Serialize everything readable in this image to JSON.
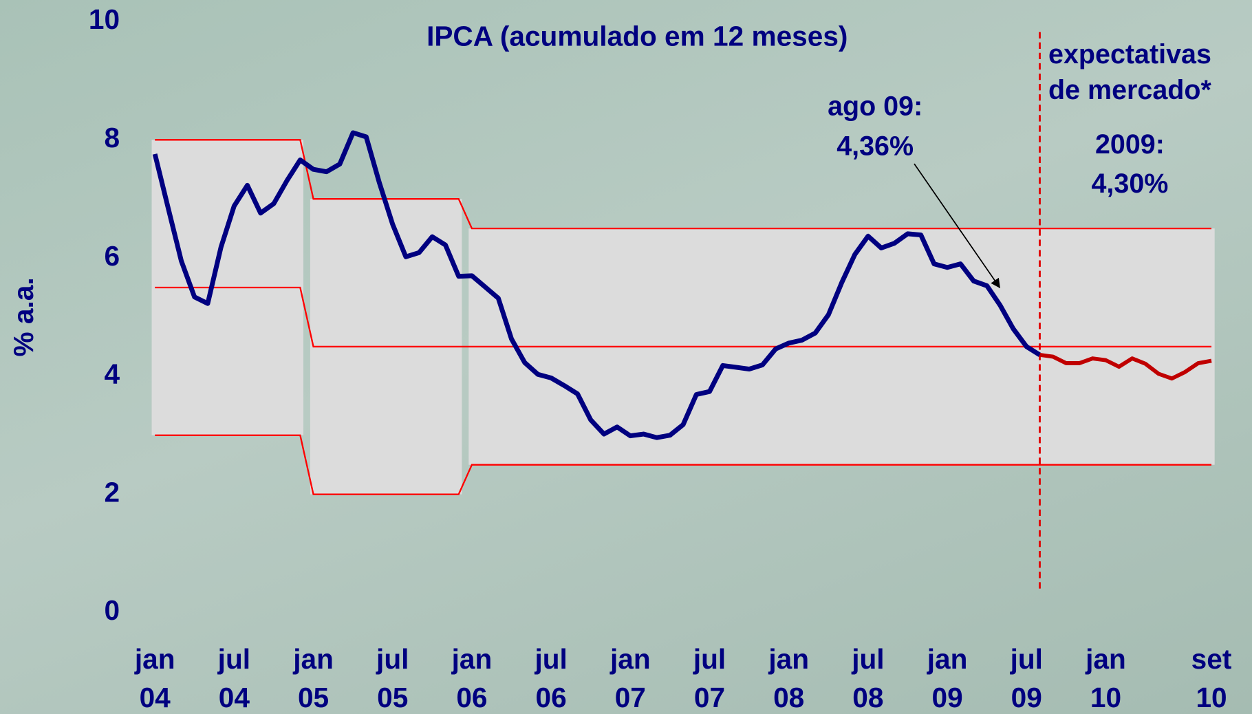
{
  "chart_data": {
    "type": "line",
    "title": "IPCA (acumulado em 12 meses)",
    "y_label": "% a.a.",
    "annotations": {
      "point": [
        "ago 09:",
        "4,36%"
      ],
      "forecast": [
        "expectativas",
        "de mercado*"
      ],
      "forecast_value": [
        "2009:",
        "4,30%"
      ]
    },
    "categories": [
      "jan 04",
      null,
      null,
      null,
      null,
      null,
      "jul 04",
      null,
      null,
      null,
      null,
      null,
      "jan 05",
      null,
      null,
      null,
      null,
      null,
      "jul 05",
      null,
      null,
      null,
      null,
      null,
      "jan 06",
      null,
      null,
      null,
      null,
      null,
      "jul 06",
      null,
      null,
      null,
      null,
      null,
      "jan 07",
      null,
      null,
      null,
      null,
      null,
      "jul 07",
      null,
      null,
      null,
      null,
      null,
      "jan 08",
      null,
      null,
      null,
      null,
      null,
      "jul 08",
      null,
      null,
      null,
      null,
      null,
      "jan 09",
      null,
      null,
      null,
      null,
      null,
      "jul 09",
      null,
      null,
      null,
      null,
      null,
      "jan 10",
      null,
      null,
      null,
      null,
      null,
      null,
      null,
      "set 10"
    ],
    "series": [
      {
        "color": "#000080",
        "values": [
          7.76,
          6.85,
          5.95,
          5.34,
          5.23,
          6.18,
          6.88,
          7.23,
          6.76,
          6.92,
          7.31,
          7.66,
          7.5,
          7.46,
          7.59,
          8.12,
          8.05,
          7.27,
          6.57,
          6.02,
          6.09,
          6.36,
          6.22,
          5.69,
          5.7,
          5.51,
          5.32,
          4.63,
          4.23,
          4.03,
          3.97,
          3.84,
          3.7,
          3.26,
          3.02,
          3.14,
          2.99,
          3.02,
          2.96,
          3.0,
          3.18,
          3.69,
          3.74,
          4.18,
          4.15,
          4.12,
          4.19,
          4.46,
          4.56,
          4.61,
          4.73,
          5.04,
          5.58,
          6.06,
          6.37,
          6.17,
          6.25,
          6.41,
          6.39,
          5.9,
          5.84,
          5.9,
          5.61,
          5.53,
          5.2,
          4.8,
          4.5,
          4.36,
          null,
          null,
          null,
          null,
          null,
          null,
          null,
          null,
          null,
          null,
          null,
          null,
          null
        ]
      },
      {
        "color": "#c00000",
        "values": [
          null,
          null,
          null,
          null,
          null,
          null,
          null,
          null,
          null,
          null,
          null,
          null,
          null,
          null,
          null,
          null,
          null,
          null,
          null,
          null,
          null,
          null,
          null,
          null,
          null,
          null,
          null,
          null,
          null,
          null,
          null,
          null,
          null,
          null,
          null,
          null,
          null,
          null,
          null,
          null,
          null,
          null,
          null,
          null,
          null,
          null,
          null,
          null,
          null,
          null,
          null,
          null,
          null,
          null,
          null,
          null,
          null,
          null,
          null,
          null,
          null,
          null,
          null,
          null,
          null,
          null,
          null,
          4.36,
          4.33,
          4.22,
          4.22,
          4.3,
          4.27,
          4.16,
          4.3,
          4.21,
          4.04,
          3.96,
          4.07,
          4.22,
          4.26
        ]
      }
    ],
    "target": {
      "color": "#ff0000",
      "upper": [
        8,
        8,
        8,
        8,
        8,
        8,
        8,
        8,
        8,
        8,
        8,
        8,
        7,
        7,
        7,
        7,
        7,
        7,
        7,
        7,
        7,
        7,
        7,
        7,
        6.5,
        6.5,
        6.5,
        6.5,
        6.5,
        6.5,
        6.5,
        6.5,
        6.5,
        6.5,
        6.5,
        6.5,
        6.5,
        6.5,
        6.5,
        6.5,
        6.5,
        6.5,
        6.5,
        6.5,
        6.5,
        6.5,
        6.5,
        6.5,
        6.5,
        6.5,
        6.5,
        6.5,
        6.5,
        6.5,
        6.5,
        6.5,
        6.5,
        6.5,
        6.5,
        6.5,
        6.5,
        6.5,
        6.5,
        6.5,
        6.5,
        6.5,
        6.5,
        6.5,
        6.5,
        6.5,
        6.5,
        6.5,
        6.5,
        6.5,
        6.5,
        6.5,
        6.5,
        6.5,
        6.5,
        6.5,
        6.5
      ],
      "center": [
        5.5,
        5.5,
        5.5,
        5.5,
        5.5,
        5.5,
        5.5,
        5.5,
        5.5,
        5.5,
        5.5,
        5.5,
        4.5,
        4.5,
        4.5,
        4.5,
        4.5,
        4.5,
        4.5,
        4.5,
        4.5,
        4.5,
        4.5,
        4.5,
        4.5,
        4.5,
        4.5,
        4.5,
        4.5,
        4.5,
        4.5,
        4.5,
        4.5,
        4.5,
        4.5,
        4.5,
        4.5,
        4.5,
        4.5,
        4.5,
        4.5,
        4.5,
        4.5,
        4.5,
        4.5,
        4.5,
        4.5,
        4.5,
        4.5,
        4.5,
        4.5,
        4.5,
        4.5,
        4.5,
        4.5,
        4.5,
        4.5,
        4.5,
        4.5,
        4.5,
        4.5,
        4.5,
        4.5,
        4.5,
        4.5,
        4.5,
        4.5,
        4.5,
        4.5,
        4.5,
        4.5,
        4.5,
        4.5,
        4.5,
        4.5,
        4.5,
        4.5,
        4.5,
        4.5,
        4.5,
        4.5
      ],
      "lower": [
        3,
        3,
        3,
        3,
        3,
        3,
        3,
        3,
        3,
        3,
        3,
        3,
        2,
        2,
        2,
        2,
        2,
        2,
        2,
        2,
        2,
        2,
        2,
        2,
        2.5,
        2.5,
        2.5,
        2.5,
        2.5,
        2.5,
        2.5,
        2.5,
        2.5,
        2.5,
        2.5,
        2.5,
        2.5,
        2.5,
        2.5,
        2.5,
        2.5,
        2.5,
        2.5,
        2.5,
        2.5,
        2.5,
        2.5,
        2.5,
        2.5,
        2.5,
        2.5,
        2.5,
        2.5,
        2.5,
        2.5,
        2.5,
        2.5,
        2.5,
        2.5,
        2.5,
        2.5,
        2.5,
        2.5,
        2.5,
        2.5,
        2.5,
        2.5,
        2.5,
        2.5,
        2.5,
        2.5,
        2.5,
        2.5,
        2.5,
        2.5,
        2.5,
        2.5,
        2.5,
        2.5,
        2.5,
        2.5
      ]
    },
    "ylim": [
      0,
      10
    ],
    "yticks": [
      0,
      2,
      4,
      6,
      8,
      10
    ],
    "grid": false
  }
}
